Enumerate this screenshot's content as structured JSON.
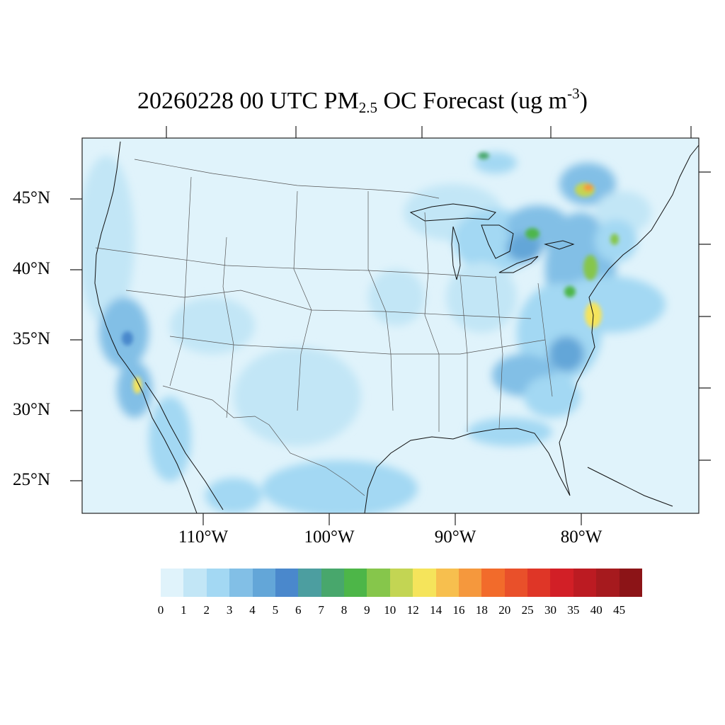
{
  "title": {
    "prefix": "20260228 00 UTC PM",
    "subscript": "2.5",
    "middle": " OC Forecast (ug m",
    "superscript": "-3",
    "suffix": ")"
  },
  "map": {
    "projection": "lambert-conformal",
    "region": "Contiguous United States",
    "lat_labels": [
      "45°N",
      "40°N",
      "35°N",
      "30°N",
      "25°N"
    ],
    "lon_labels": [
      "110°W",
      "100°W",
      "90°W",
      "80°W"
    ],
    "hotspots": [
      {
        "name": "Montreal",
        "level": 14
      },
      {
        "name": "Southern California",
        "level": 12
      },
      {
        "name": "Chesapeake / Virginia coast",
        "level": 12
      },
      {
        "name": "New York corridor",
        "level": 10
      },
      {
        "name": "Detroit / Southern Ontario",
        "level": 9
      }
    ]
  },
  "colorbar": {
    "labels": [
      "0",
      "1",
      "2",
      "3",
      "4",
      "5",
      "6",
      "7",
      "8",
      "9",
      "10",
      "12",
      "14",
      "16",
      "18",
      "20",
      "25",
      "30",
      "35",
      "40",
      "45"
    ],
    "colors": [
      "#e0f3fb",
      "#c2e6f6",
      "#a3d8f3",
      "#82bfe6",
      "#63a6d8",
      "#4a88cc",
      "#4c9ea0",
      "#48a76c",
      "#4db648",
      "#86c64b",
      "#c3d553",
      "#f5e45b",
      "#f7bf4e",
      "#f5983d",
      "#f26b2b",
      "#e9502a",
      "#df3627",
      "#d21f26",
      "#bc1b22",
      "#a61a1e",
      "#8c1417"
    ]
  }
}
